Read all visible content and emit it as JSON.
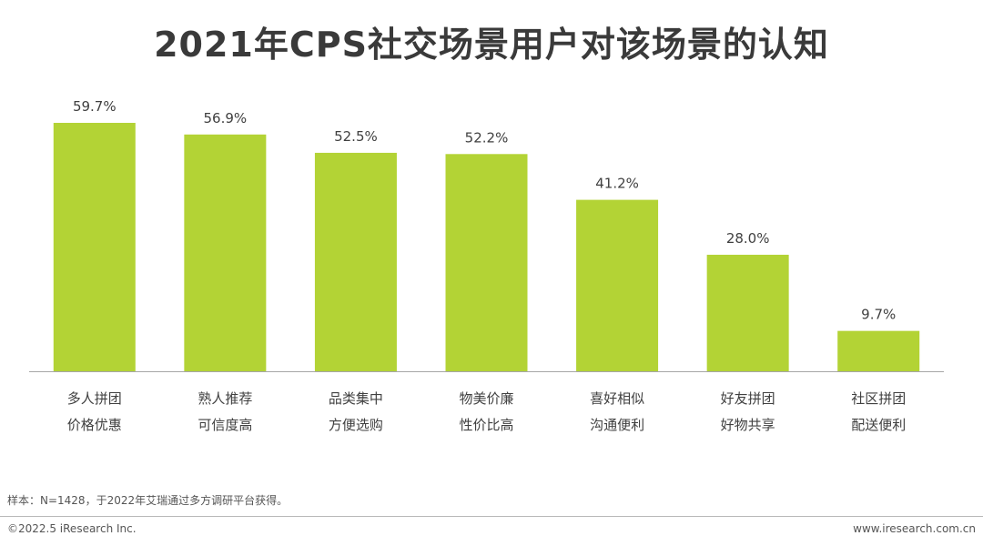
{
  "title": "2021年CPS社交场景用户对该场景的认知",
  "chart_data": {
    "type": "bar",
    "title": "2021年CPS社交场景用户对该场景的认知",
    "categories": [
      [
        "多人拼团",
        "价格优惠"
      ],
      [
        "熟人推荐",
        "可信度高"
      ],
      [
        "品类集中",
        "方便选购"
      ],
      [
        "物美价廉",
        "性价比高"
      ],
      [
        "喜好相似",
        "沟通便利"
      ],
      [
        "好友拼团",
        "好物共享"
      ],
      [
        "社区拼团",
        "配送便利"
      ]
    ],
    "values": [
      59.7,
      56.9,
      52.5,
      52.2,
      41.2,
      28.0,
      9.7
    ],
    "value_labels": [
      "59.7%",
      "56.9%",
      "52.5%",
      "52.2%",
      "41.2%",
      "28.0%",
      "9.7%"
    ],
    "ylim": [
      0,
      60
    ],
    "grid": false,
    "legend": "none",
    "bar_color": "#b3d335",
    "axis_color": "#a6a6a6"
  },
  "footer": {
    "note": "样本：N=1428，于2022年艾瑞通过多方调研平台获得。",
    "copyright": "©2022.5 iResearch Inc.",
    "website": "www.iresearch.com.cn"
  }
}
